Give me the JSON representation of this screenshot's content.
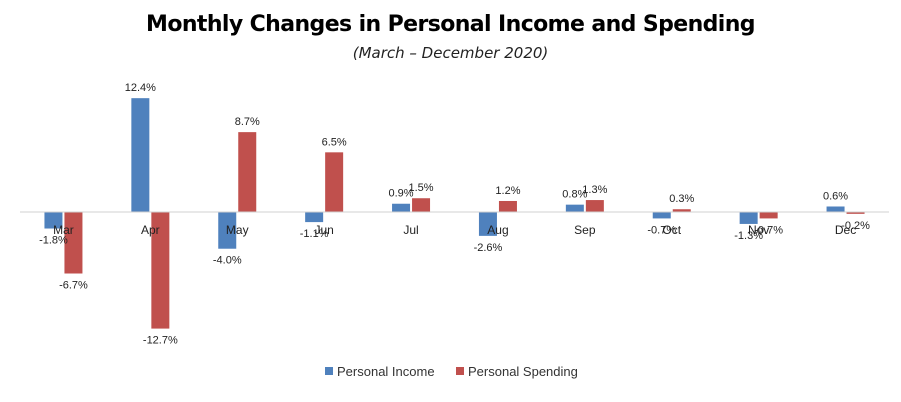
{
  "chart_data": {
    "type": "bar",
    "title": "Monthly Changes in Personal Income and Spending",
    "subtitle": "(March – December 2020)",
    "categories": [
      "Mar",
      "Apr",
      "May",
      "Jun",
      "Jul",
      "Aug",
      "Sep",
      "Oct",
      "Nov",
      "Dec"
    ],
    "series": [
      {
        "name": "Personal Income",
        "color": "#4f81bd",
        "values": [
          -1.8,
          12.4,
          -4.0,
          -1.1,
          0.9,
          -2.6,
          0.8,
          -0.7,
          -1.3,
          0.6
        ],
        "labels": [
          "-1.8%",
          "12.4%",
          "-4.0%",
          "-1.1%",
          "0.9%",
          "-2.6%",
          "0.8%",
          "-0.7%",
          "-1.3%",
          "0.6%"
        ]
      },
      {
        "name": "Personal Spending",
        "color": "#c0504d",
        "values": [
          -6.7,
          -12.7,
          8.7,
          6.5,
          1.5,
          1.2,
          1.3,
          0.3,
          -0.7,
          -0.2
        ],
        "labels": [
          "-6.7%",
          "-12.7%",
          "8.7%",
          "6.5%",
          "1.5%",
          "1.2%",
          "1.3%",
          "0.3%",
          "-0.7%",
          "-0.2%"
        ]
      }
    ],
    "ylim": [
      -14,
      13
    ],
    "grid": false,
    "legend_position": "bottom"
  }
}
